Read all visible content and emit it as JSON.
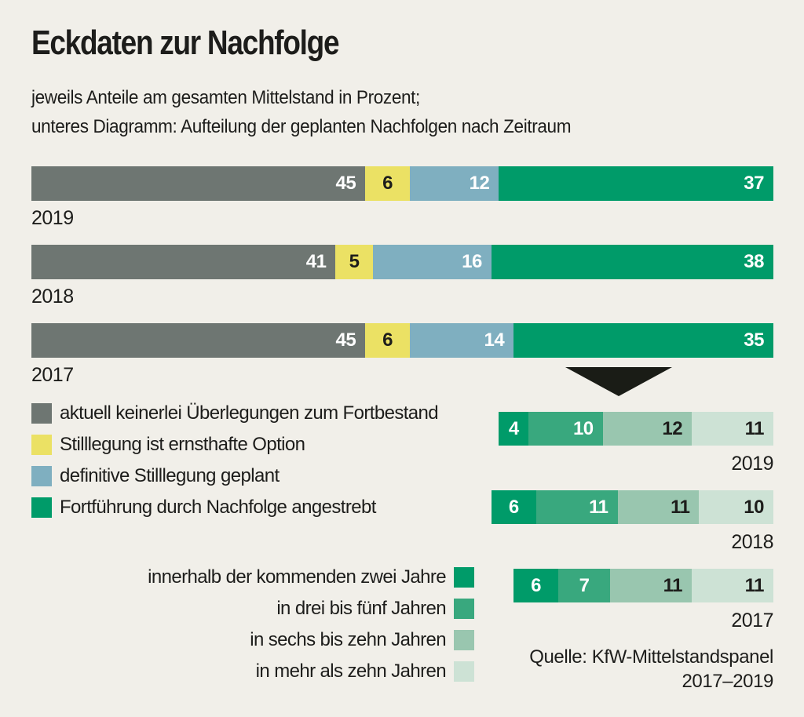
{
  "page": {
    "title": "Eckdaten zur Nachfolge",
    "subtitle_line1": "jeweils Anteile am gesamten Mittelstand in Prozent;",
    "subtitle_line2": "unteres Diagramm: Aufteilung der geplanten Nachfolgen nach Zeitraum",
    "source_line1": "Quelle: KfW-Mittelstandspanel",
    "source_line2": "2017–2019"
  },
  "colors": {
    "background": "#f1efe9",
    "text": "#1d1d1b",
    "arrow": "#1a1c16",
    "gray": "#6e7672",
    "yellow": "#ebe164",
    "blue": "#7fafc0",
    "green_dark": "#009b69",
    "green_medium": "#39a87e",
    "green_light": "#99c6af",
    "green_pale": "#cde2d5"
  },
  "chart_data": [
    {
      "type": "bar",
      "orientation": "horizontal-stacked",
      "title": "Anteile am gesamten Mittelstand in Prozent",
      "categories": [
        "2019",
        "2018",
        "2017"
      ],
      "xlim": [
        0,
        100
      ],
      "legend_position": "below-left",
      "series": [
        {
          "name": "aktuell keinerlei Überlegungen zum Fortbestand",
          "color": "#6e7672",
          "label_color": "#ffffff",
          "values": [
            45,
            41,
            45
          ]
        },
        {
          "name": "Stilllegung ist ernsthafte Option",
          "color": "#ebe164",
          "label_color": "#1d1d1b",
          "values": [
            6,
            5,
            6
          ]
        },
        {
          "name": "definitive Stilllegung geplant",
          "color": "#7fafc0",
          "label_color": "#ffffff",
          "values": [
            12,
            16,
            14
          ]
        },
        {
          "name": "Fortführung durch Nachfolge angestrebt",
          "color": "#009b69",
          "label_color": "#ffffff",
          "values": [
            37,
            38,
            35
          ]
        }
      ]
    },
    {
      "type": "bar",
      "orientation": "horizontal-stacked",
      "title": "Aufteilung der geplanten Nachfolgen nach Zeitraum",
      "categories": [
        "2019",
        "2018",
        "2017"
      ],
      "alignment": "right-aligned, same unit scale as top chart",
      "legend_position": "left-of-bars",
      "series": [
        {
          "name": "innerhalb der kommenden zwei Jahre",
          "color": "#009b69",
          "label_color": "#ffffff",
          "values": [
            4,
            6,
            6
          ]
        },
        {
          "name": "in drei bis fünf Jahren",
          "color": "#39a87e",
          "label_color": "#ffffff",
          "values": [
            10,
            11,
            7
          ]
        },
        {
          "name": "in sechs bis zehn Jahren",
          "color": "#99c6af",
          "label_color": "#1d1d1b",
          "values": [
            12,
            11,
            11
          ]
        },
        {
          "name": "in mehr als zehn Jahren",
          "color": "#cde2d5",
          "label_color": "#1d1d1b",
          "values": [
            11,
            10,
            11
          ]
        }
      ]
    }
  ]
}
